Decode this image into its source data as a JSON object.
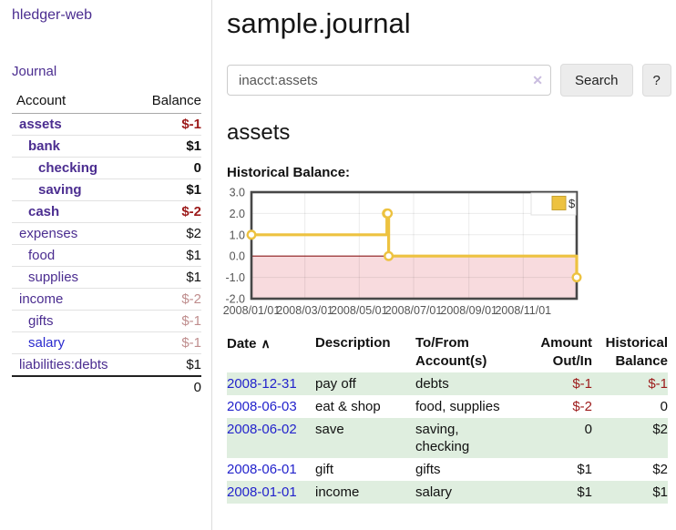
{
  "colors": {
    "link_purple": "#4b2d90",
    "link_blue": "#2a2ace",
    "negative_red": "#9c1a1a",
    "soft_negative_rose": "#bf8d8d",
    "date_link_blue": "#2323cc",
    "stripe_green": "#dfeedf"
  },
  "sidebar": {
    "app_title": "hledger-web",
    "journal_link": "Journal",
    "accounts_header": {
      "account": "Account",
      "balance": "Balance"
    },
    "accounts": [
      {
        "name": "assets",
        "depth": 1,
        "bold": true,
        "balance": "$-1",
        "balance_class": "neg"
      },
      {
        "name": "bank",
        "depth": 2,
        "bold": true,
        "balance": "$1",
        "balance_class": ""
      },
      {
        "name": "checking",
        "depth": 3,
        "bold": true,
        "balance": "0",
        "balance_class": ""
      },
      {
        "name": "saving",
        "depth": 3,
        "bold": true,
        "balance": "$1",
        "balance_class": ""
      },
      {
        "name": "cash",
        "depth": 2,
        "bold": true,
        "balance": "$-2",
        "balance_class": "neg"
      },
      {
        "name": "expenses",
        "depth": 1,
        "bold": false,
        "balance": "$2",
        "balance_class": ""
      },
      {
        "name": "food",
        "depth": 2,
        "bold": false,
        "balance": "$1",
        "balance_class": ""
      },
      {
        "name": "supplies",
        "depth": 2,
        "bold": false,
        "balance": "$1",
        "balance_class": ""
      },
      {
        "name": "income",
        "depth": 1,
        "bold": false,
        "balance": "$-2",
        "balance_class": "softneg"
      },
      {
        "name": "gifts",
        "depth": 2,
        "bold": false,
        "balance": "$-1",
        "balance_class": "softneg"
      },
      {
        "name": "salary",
        "depth": 2,
        "bold": false,
        "color": "blue",
        "balance": "$-1",
        "balance_class": "softneg"
      },
      {
        "name": "liabilities:debts",
        "depth": 1,
        "bold": false,
        "balance": "$1",
        "balance_class": ""
      }
    ],
    "total": "0"
  },
  "main": {
    "title": "sample.journal",
    "search": {
      "value": "inacct:assets",
      "clear_icon": "✕",
      "button_label": "Search",
      "help_label": "?"
    },
    "account_heading": "assets",
    "chart_label": "Historical Balance:"
  },
  "chart_data": {
    "type": "line",
    "title": "Historical Balance of assets",
    "step": true,
    "grid": true,
    "legend_position": "top-right",
    "ylim": [
      -2,
      3
    ],
    "yticks": [
      3,
      2,
      1,
      0,
      -1,
      -2
    ],
    "xrange_days": [
      0,
      365
    ],
    "xticks": [
      {
        "label": "2008/01/01",
        "day": 0
      },
      {
        "label": "2008/03/01",
        "day": 60
      },
      {
        "label": "2008/05/01",
        "day": 121
      },
      {
        "label": "2008/07/01",
        "day": 182
      },
      {
        "label": "2008/09/01",
        "day": 244
      },
      {
        "label": "2008/11/01",
        "day": 305
      }
    ],
    "series": [
      {
        "name": "$",
        "points": [
          {
            "date": "2008-01-01",
            "day": 0,
            "value": 1
          },
          {
            "date": "2008-06-01",
            "day": 152,
            "value": 2
          },
          {
            "date": "2008-06-02",
            "day": 153,
            "value": 2
          },
          {
            "date": "2008-06-03",
            "day": 154,
            "value": 0
          },
          {
            "date": "2008-12-31",
            "day": 365,
            "value": -1
          }
        ]
      }
    ],
    "colors": {
      "line": "#edc240",
      "line_edge": "#c7a232",
      "negative_fill": "#f8dbde",
      "zero_line": "#8b1a1a",
      "border": "#474747"
    }
  },
  "transactions": {
    "headers": {
      "date": "Date",
      "sort_icon": "∧",
      "description": "Description",
      "account": "To/From Account(s)",
      "amount": "Amount Out/In",
      "balance": "Historical Balance"
    },
    "rows": [
      {
        "date": "2008-12-31",
        "description": "pay off",
        "accounts": "debts",
        "amount": "$-1",
        "amount_class": "neg",
        "balance": "$-1",
        "balance_class": "neg"
      },
      {
        "date": "2008-06-03",
        "description": "eat & shop",
        "accounts": "food, supplies",
        "amount": "$-2",
        "amount_class": "neg",
        "balance": "0",
        "balance_class": ""
      },
      {
        "date": "2008-06-02",
        "description": "save",
        "accounts": "saving,\nchecking",
        "amount": "0",
        "amount_class": "",
        "balance": "$2",
        "balance_class": ""
      },
      {
        "date": "2008-06-01",
        "description": "gift",
        "accounts": "gifts",
        "amount": "$1",
        "amount_class": "",
        "balance": "$2",
        "balance_class": ""
      },
      {
        "date": "2008-01-01",
        "description": "income",
        "accounts": "salary",
        "amount": "$1",
        "amount_class": "",
        "balance": "$1",
        "balance_class": ""
      }
    ]
  }
}
